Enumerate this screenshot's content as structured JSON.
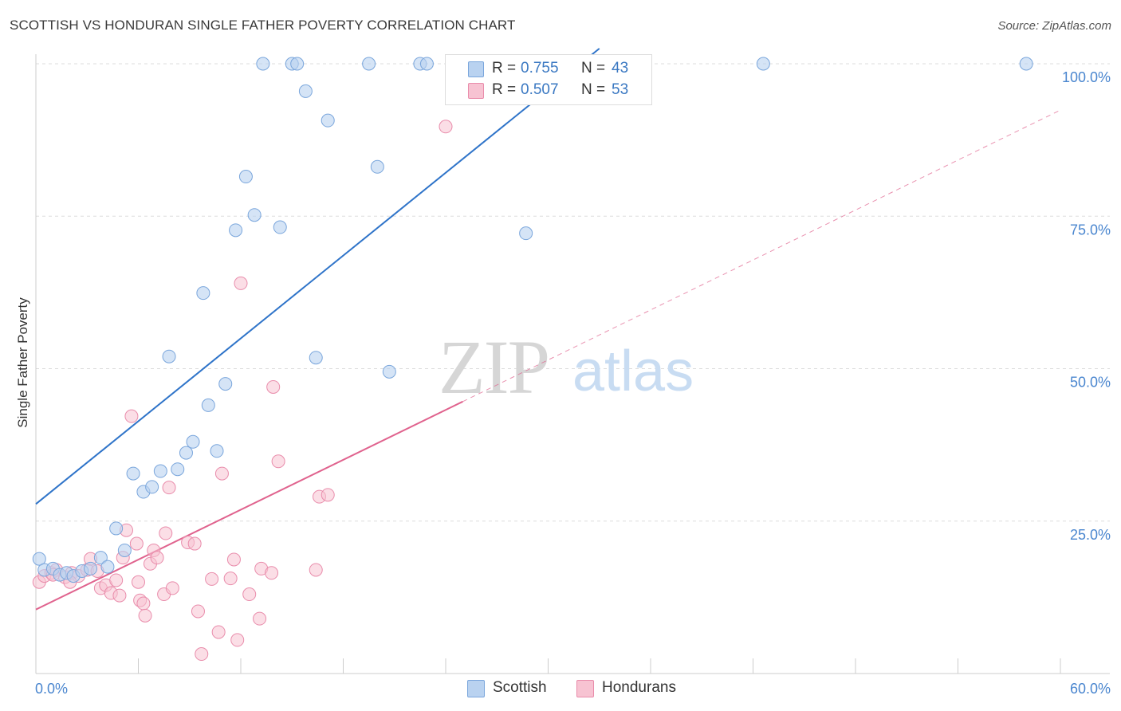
{
  "header": {
    "title": "SCOTTISH VS HONDURAN SINGLE FATHER POVERTY CORRELATION CHART",
    "source": "Source: ZipAtlas.com"
  },
  "watermark": {
    "part1": "ZIP",
    "part2": "atlas"
  },
  "legend_top": {
    "rows": [
      {
        "r_label": "R = ",
        "r_value": "0.755",
        "n_label": "N = ",
        "n_value": "43"
      },
      {
        "r_label": "R = ",
        "r_value": "0.507",
        "n_label": "N = ",
        "n_value": "53"
      }
    ]
  },
  "legend_bottom": {
    "items": [
      "Scottish",
      "Hondurans"
    ]
  },
  "colors": {
    "scottish_fill": "#b9d2f0",
    "scottish_stroke": "#7aa6dc",
    "scottish_line": "#2f74c9",
    "honduran_fill": "#f7c3d2",
    "honduran_stroke": "#e98cab",
    "honduran_line": "#e0638e",
    "axis_label": "#4a86cf",
    "grid": "#dddddd"
  },
  "chart_data": {
    "type": "scatter",
    "title": "SCOTTISH VS HONDURAN SINGLE FATHER POVERTY CORRELATION CHART",
    "xlabel": "",
    "ylabel": "Single Father Poverty",
    "xlim": [
      0,
      60
    ],
    "ylim": [
      0,
      100
    ],
    "x_tick_labels": [
      "0.0%",
      "60.0%"
    ],
    "y_ticks": [
      25,
      50,
      75,
      100
    ],
    "y_tick_labels": [
      "25.0%",
      "50.0%",
      "75.0%",
      "100.0%"
    ],
    "grid": true,
    "legend_position": "top-center",
    "series": [
      {
        "name": "Scottish",
        "r": 0.755,
        "n": 43,
        "trend": {
          "x0": 0,
          "y0": 27.8,
          "x1": 33,
          "y1": 102.5,
          "dashed_to": null
        },
        "points": [
          [
            0.2,
            18.8
          ],
          [
            0.5,
            17.0
          ],
          [
            1.0,
            17.2
          ],
          [
            1.4,
            16.2
          ],
          [
            1.8,
            16.5
          ],
          [
            2.2,
            16.0
          ],
          [
            2.7,
            16.8
          ],
          [
            3.2,
            17.2
          ],
          [
            3.8,
            19.0
          ],
          [
            4.2,
            17.5
          ],
          [
            4.7,
            23.8
          ],
          [
            5.2,
            20.2
          ],
          [
            5.7,
            32.8
          ],
          [
            6.3,
            29.8
          ],
          [
            6.8,
            30.6
          ],
          [
            7.3,
            33.2
          ],
          [
            7.8,
            52.0
          ],
          [
            8.3,
            33.5
          ],
          [
            8.8,
            36.2
          ],
          [
            9.2,
            38.0
          ],
          [
            9.8,
            62.4
          ],
          [
            10.1,
            44.0
          ],
          [
            10.6,
            36.5
          ],
          [
            11.1,
            47.5
          ],
          [
            11.7,
            72.7
          ],
          [
            12.3,
            81.5
          ],
          [
            12.8,
            75.2
          ],
          [
            13.3,
            100.0
          ],
          [
            14.3,
            73.2
          ],
          [
            15.0,
            100.0
          ],
          [
            15.3,
            100.0
          ],
          [
            15.8,
            95.5
          ],
          [
            16.4,
            51.8
          ],
          [
            17.1,
            90.7
          ],
          [
            19.5,
            100.0
          ],
          [
            20.0,
            83.1
          ],
          [
            20.7,
            49.5
          ],
          [
            22.5,
            100.0
          ],
          [
            22.9,
            100.0
          ],
          [
            28.7,
            72.2
          ],
          [
            32.6,
            100.0
          ],
          [
            42.6,
            100.0
          ],
          [
            58.0,
            100.0
          ]
        ]
      },
      {
        "name": "Hondurans",
        "r": 0.507,
        "n": 53,
        "trend": {
          "x0": 0,
          "y0": 10.5,
          "x1": 25,
          "y1": 44.6,
          "dashed_to": {
            "x": 60,
            "y": 92.4
          }
        },
        "points": [
          [
            0.2,
            15.0
          ],
          [
            0.5,
            16.0
          ],
          [
            0.9,
            16.5
          ],
          [
            1.2,
            17.0
          ],
          [
            1.7,
            15.8
          ],
          [
            2.1,
            16.5
          ],
          [
            2.5,
            16.0
          ],
          [
            3.0,
            17.0
          ],
          [
            3.2,
            18.8
          ],
          [
            3.6,
            16.8
          ],
          [
            3.8,
            14.0
          ],
          [
            4.1,
            14.5
          ],
          [
            4.4,
            13.2
          ],
          [
            4.7,
            15.3
          ],
          [
            4.9,
            12.8
          ],
          [
            5.1,
            19.0
          ],
          [
            5.3,
            23.5
          ],
          [
            5.6,
            42.2
          ],
          [
            5.9,
            21.3
          ],
          [
            6.1,
            12.0
          ],
          [
            6.3,
            11.5
          ],
          [
            6.4,
            9.5
          ],
          [
            6.7,
            18.0
          ],
          [
            6.9,
            20.2
          ],
          [
            7.1,
            19.0
          ],
          [
            7.5,
            13.0
          ],
          [
            7.6,
            23.0
          ],
          [
            7.8,
            30.5
          ],
          [
            8.9,
            21.5
          ],
          [
            9.3,
            21.3
          ],
          [
            9.5,
            10.2
          ],
          [
            9.7,
            3.2
          ],
          [
            10.3,
            15.5
          ],
          [
            10.7,
            6.8
          ],
          [
            10.9,
            32.8
          ],
          [
            11.4,
            15.6
          ],
          [
            11.6,
            18.7
          ],
          [
            11.8,
            5.5
          ],
          [
            12.0,
            64.0
          ],
          [
            13.1,
            9.0
          ],
          [
            13.2,
            17.2
          ],
          [
            13.8,
            16.5
          ],
          [
            13.9,
            47.0
          ],
          [
            14.2,
            34.8
          ],
          [
            16.4,
            17.0
          ],
          [
            16.6,
            29.0
          ],
          [
            17.1,
            29.3
          ],
          [
            24.0,
            89.7
          ],
          [
            2.0,
            15.0
          ],
          [
            1.0,
            16.2
          ],
          [
            6.0,
            15.0
          ],
          [
            8.0,
            14.0
          ],
          [
            12.5,
            13.0
          ]
        ]
      }
    ]
  }
}
